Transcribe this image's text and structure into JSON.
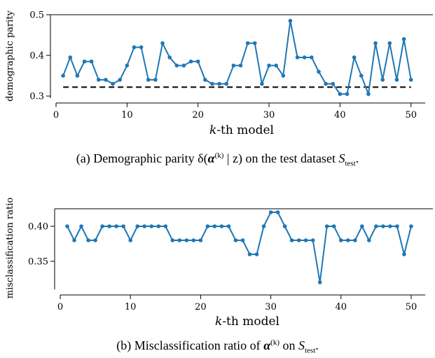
{
  "chart_data": [
    {
      "type": "line",
      "xlabel": "k-th model",
      "ylabel": "demographic parity",
      "xlim": [
        0,
        52
      ],
      "ylim": [
        0.295,
        0.5
      ],
      "xticks": [
        0,
        10,
        20,
        30,
        40,
        50
      ],
      "yticks": [
        0.3,
        0.4,
        0.5
      ],
      "ytick_labels": [
        "0.3",
        "0.4",
        "0.5"
      ],
      "x": [
        1,
        2,
        3,
        4,
        5,
        6,
        7,
        8,
        9,
        10,
        11,
        12,
        13,
        14,
        15,
        16,
        17,
        18,
        19,
        20,
        21,
        22,
        23,
        24,
        25,
        26,
        27,
        28,
        29,
        30,
        31,
        32,
        33,
        34,
        35,
        36,
        37,
        38,
        39,
        40,
        41,
        42,
        43,
        44,
        45,
        46,
        47,
        48,
        49,
        50
      ],
      "series": [
        {
          "values": [
            0.35,
            0.395,
            0.35,
            0.385,
            0.385,
            0.34,
            0.34,
            0.33,
            0.34,
            0.375,
            0.42,
            0.42,
            0.34,
            0.34,
            0.43,
            0.395,
            0.375,
            0.375,
            0.385,
            0.385,
            0.34,
            0.33,
            0.33,
            0.33,
            0.375,
            0.375,
            0.43,
            0.43,
            0.33,
            0.375,
            0.375,
            0.35,
            0.485,
            0.395,
            0.395,
            0.395,
            0.36,
            0.33,
            0.33,
            0.305,
            0.305,
            0.395,
            0.35,
            0.305,
            0.43,
            0.34,
            0.43,
            0.34,
            0.44,
            0.34
          ]
        }
      ],
      "reference_line": {
        "y": 0.322,
        "x_range": [
          1,
          50
        ],
        "style": "dashed"
      },
      "grid": false,
      "color": "#1f77b4"
    },
    {
      "type": "line",
      "xlabel": "k-th model",
      "ylabel": "misclassification ratio",
      "xlim": [
        0,
        52
      ],
      "ylim": [
        0.31,
        0.425
      ],
      "xticks": [
        0,
        10,
        20,
        30,
        40,
        50
      ],
      "yticks": [
        0.35,
        0.4
      ],
      "ytick_labels": [
        "0.35",
        "0.40"
      ],
      "x": [
        1,
        2,
        3,
        4,
        5,
        6,
        7,
        8,
        9,
        10,
        11,
        12,
        13,
        14,
        15,
        16,
        17,
        18,
        19,
        20,
        21,
        22,
        23,
        24,
        25,
        26,
        27,
        28,
        29,
        30,
        31,
        32,
        33,
        34,
        35,
        36,
        37,
        38,
        39,
        40,
        41,
        42,
        43,
        44,
        45,
        46,
        47,
        48,
        49,
        50
      ],
      "series": [
        {
          "values": [
            0.4,
            0.38,
            0.4,
            0.38,
            0.38,
            0.4,
            0.4,
            0.4,
            0.4,
            0.38,
            0.4,
            0.4,
            0.4,
            0.4,
            0.4,
            0.38,
            0.38,
            0.38,
            0.38,
            0.38,
            0.4,
            0.4,
            0.4,
            0.4,
            0.38,
            0.38,
            0.36,
            0.36,
            0.4,
            0.42,
            0.42,
            0.4,
            0.38,
            0.38,
            0.38,
            0.38,
            0.32,
            0.4,
            0.4,
            0.38,
            0.38,
            0.38,
            0.4,
            0.38,
            0.4,
            0.4,
            0.4,
            0.4,
            0.36,
            0.4
          ]
        }
      ],
      "grid": false,
      "color": "#1f77b4"
    }
  ],
  "captions": {
    "a": {
      "prefix": "(a)  Demographic parity δ(",
      "var": "α",
      "sup": "(k)",
      "mid": " | z) on the test dataset ",
      "set": "S",
      "sub": "test",
      "suffix": "."
    },
    "b": {
      "prefix": "(b)  Misclassification ratio of ",
      "var": "α",
      "sup": "(k)",
      "mid": " on ",
      "set": "S",
      "sub": "test",
      "suffix": "."
    }
  }
}
